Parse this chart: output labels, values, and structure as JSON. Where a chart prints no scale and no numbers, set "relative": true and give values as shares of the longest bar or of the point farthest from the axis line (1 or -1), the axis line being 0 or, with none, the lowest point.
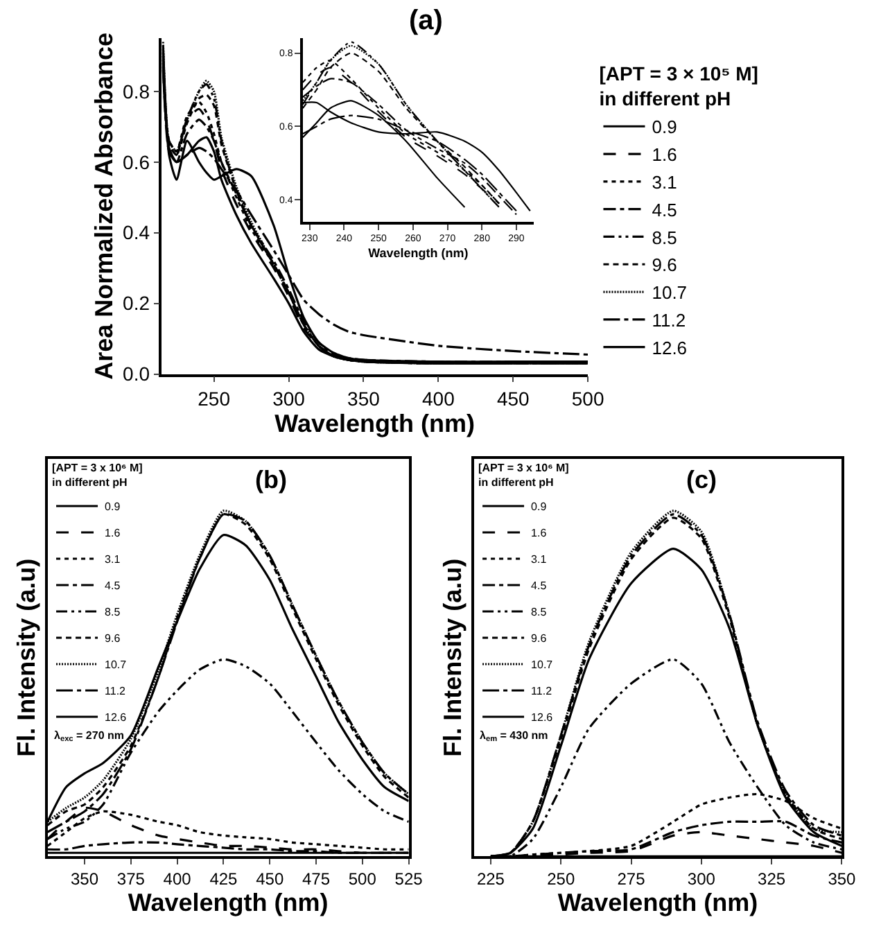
{
  "chart_data": [
    {
      "type": "line",
      "title": "(a)",
      "xlabel": "Wavelength (nm)",
      "ylabel": "Area Normalized Absorbance",
      "legend_title": "[APT = 3 × 10⁵ M]\nin different pH",
      "legend": "right",
      "xlim": [
        215,
        500
      ],
      "ylim": [
        0,
        0.95
      ],
      "xticks": [
        250,
        300,
        350,
        400,
        450,
        500
      ],
      "yticks": [
        {
          "value": 0,
          "label": "0.0"
        },
        0.2,
        0.4,
        0.6,
        0.8
      ],
      "grid": false,
      "marker": "none",
      "x": [
        216,
        220,
        225,
        232,
        240,
        245,
        250,
        255,
        265,
        275,
        290,
        300,
        310,
        320,
        330,
        340,
        350,
        400,
        450,
        500
      ],
      "series": [
        {
          "name": "0.9",
          "color": "#000000",
          "line_style": "solid",
          "values": [
            0.93,
            0.62,
            0.55,
            0.66,
            0.6,
            0.57,
            0.55,
            0.56,
            0.58,
            0.56,
            0.42,
            0.28,
            0.16,
            0.09,
            0.06,
            0.045,
            0.04,
            0.035,
            0.035,
            0.035
          ]
        },
        {
          "name": "1.6",
          "color": "#000000",
          "line_style": "dashed",
          "values": [
            0.9,
            0.65,
            0.62,
            0.72,
            0.75,
            0.72,
            0.66,
            0.58,
            0.48,
            0.4,
            0.3,
            0.22,
            0.13,
            0.08,
            0.05,
            0.04,
            0.035,
            0.03,
            0.03,
            0.03
          ]
        },
        {
          "name": "3.1",
          "color": "#000000",
          "line_style": "dotted",
          "values": [
            0.91,
            0.66,
            0.63,
            0.73,
            0.77,
            0.74,
            0.68,
            0.6,
            0.5,
            0.41,
            0.31,
            0.23,
            0.14,
            0.08,
            0.05,
            0.04,
            0.035,
            0.03,
            0.03,
            0.03
          ]
        },
        {
          "name": "4.5",
          "color": "#000000",
          "line_style": "dashdot",
          "values": [
            0.89,
            0.64,
            0.6,
            0.68,
            0.72,
            0.7,
            0.66,
            0.6,
            0.51,
            0.42,
            0.32,
            0.24,
            0.15,
            0.09,
            0.055,
            0.045,
            0.04,
            0.035,
            0.035,
            0.035
          ]
        },
        {
          "name": "8.5",
          "color": "#000000",
          "line_style": "dashdotdot",
          "values": [
            0.92,
            0.66,
            0.63,
            0.72,
            0.8,
            0.82,
            0.78,
            0.66,
            0.52,
            0.42,
            0.31,
            0.23,
            0.14,
            0.08,
            0.05,
            0.04,
            0.035,
            0.03,
            0.03,
            0.03
          ]
        },
        {
          "name": "9.6",
          "color": "#000000",
          "line_style": "shortdash",
          "values": [
            0.88,
            0.65,
            0.62,
            0.71,
            0.78,
            0.79,
            0.76,
            0.65,
            0.52,
            0.42,
            0.31,
            0.23,
            0.14,
            0.08,
            0.05,
            0.04,
            0.035,
            0.03,
            0.03,
            0.03
          ]
        },
        {
          "name": "10.7",
          "color": "#000000",
          "line_style": "densedot",
          "values": [
            0.94,
            0.66,
            0.63,
            0.72,
            0.8,
            0.83,
            0.8,
            0.67,
            0.53,
            0.43,
            0.31,
            0.23,
            0.14,
            0.08,
            0.05,
            0.04,
            0.035,
            0.03,
            0.03,
            0.03
          ]
        },
        {
          "name": "11.2",
          "color": "#000000",
          "line_style": "longdashdot",
          "values": [
            0.87,
            0.63,
            0.6,
            0.62,
            0.64,
            0.63,
            0.61,
            0.58,
            0.52,
            0.45,
            0.35,
            0.28,
            0.21,
            0.17,
            0.14,
            0.12,
            0.11,
            0.08,
            0.065,
            0.055
          ]
        },
        {
          "name": "12.6",
          "color": "#000000",
          "line_style": "solid",
          "values": [
            0.86,
            0.64,
            0.6,
            0.62,
            0.66,
            0.67,
            0.63,
            0.55,
            0.45,
            0.37,
            0.27,
            0.2,
            0.12,
            0.07,
            0.05,
            0.04,
            0.035,
            0.03,
            0.03,
            0.03
          ]
        }
      ]
    },
    {
      "type": "line",
      "xlabel": "Wavelength (nm)",
      "legend": false,
      "xlim": [
        228,
        295
      ],
      "ylim": [
        0.34,
        0.84
      ],
      "xticks": [
        230,
        240,
        250,
        260,
        270,
        280,
        290
      ],
      "yticks": [
        0.4,
        0.6,
        0.8
      ],
      "grid": false,
      "marker": "none",
      "x": [
        228,
        232,
        236,
        242,
        250,
        258,
        267,
        275,
        280,
        285,
        290,
        294
      ],
      "series": [
        {
          "color": "#000000",
          "line_style": "solid",
          "values": [
            0.665,
            0.665,
            0.64,
            0.61,
            0.585,
            0.58,
            0.585,
            0.56,
            0.53,
            0.48,
            0.42,
            0.37
          ]
        },
        {
          "color": "#000000",
          "line_style": "dashed",
          "values": [
            0.7,
            0.74,
            0.76,
            0.72,
            0.64,
            0.57,
            0.52,
            0.47,
            0.43,
            0.39,
            null,
            null
          ]
        },
        {
          "color": "#000000",
          "line_style": "dotted",
          "values": [
            0.72,
            0.76,
            0.78,
            0.73,
            0.65,
            0.58,
            0.53,
            0.48,
            0.44,
            0.39,
            null,
            null
          ]
        },
        {
          "color": "#000000",
          "line_style": "dashdot",
          "values": [
            0.68,
            0.71,
            0.73,
            0.72,
            0.66,
            0.59,
            0.54,
            0.5,
            0.46,
            0.41,
            0.36,
            null
          ]
        },
        {
          "color": "#000000",
          "line_style": "dashdotdot",
          "values": [
            0.66,
            0.72,
            0.78,
            0.83,
            0.77,
            0.66,
            0.56,
            0.48,
            0.43,
            0.38,
            null,
            null
          ]
        },
        {
          "color": "#000000",
          "line_style": "shortdash",
          "values": [
            0.65,
            0.7,
            0.76,
            0.8,
            0.75,
            0.65,
            0.56,
            0.49,
            0.44,
            0.39,
            null,
            null
          ]
        },
        {
          "color": "#000000",
          "line_style": "densedot",
          "values": [
            0.67,
            0.72,
            0.78,
            0.82,
            0.77,
            0.66,
            0.56,
            0.48,
            0.43,
            0.38,
            null,
            null
          ]
        },
        {
          "color": "#000000",
          "line_style": "longdashdot",
          "values": [
            0.58,
            0.6,
            0.62,
            0.63,
            0.62,
            0.59,
            0.56,
            0.51,
            0.47,
            0.42,
            0.37,
            null
          ]
        },
        {
          "color": "#000000",
          "line_style": "solid",
          "values": [
            0.57,
            0.61,
            0.65,
            0.67,
            0.63,
            0.56,
            0.46,
            0.38,
            null,
            null,
            null,
            null
          ]
        }
      ]
    },
    {
      "type": "line",
      "title": "(b)",
      "xlabel": "Wavelength (nm)",
      "ylabel": "Fl. Intensity (a.u)",
      "legend_title": "[APT = 3 x 10⁶ M]\nin different pH",
      "legend": "top left",
      "relative": true,
      "tick_labels": "x",
      "xlim": [
        330,
        525
      ],
      "xticks": [
        350,
        375,
        400,
        425,
        450,
        475,
        500,
        525
      ],
      "grid": false,
      "marker": "none",
      "annotations": [
        "λ$_{exc}$ = 270 nm"
      ],
      "x": [
        330,
        340,
        350,
        360,
        375,
        390,
        400,
        412,
        425,
        437,
        450,
        462,
        475,
        487,
        500,
        512,
        525
      ],
      "series": [
        {
          "name": "0.9",
          "color": "#000000",
          "line_style": "solid",
          "values": [
            0.01,
            0.01,
            0.01,
            0.01,
            0.01,
            0.01,
            0.01,
            0.01,
            0.01,
            0.01,
            0.01,
            0.01,
            0.01,
            0.01,
            0.01,
            0.01,
            0.01
          ]
        },
        {
          "name": "1.6",
          "color": "#000000",
          "line_style": "dashed",
          "values": [
            0.05,
            0.1,
            0.14,
            0.13,
            0.09,
            0.06,
            0.05,
            0.04,
            0.03,
            0.03,
            0.025,
            0.02,
            0.02,
            0.015,
            0.01,
            0.01,
            0.01
          ]
        },
        {
          "name": "3.1",
          "color": "#000000",
          "line_style": "dotted",
          "values": [
            0.03,
            0.07,
            0.11,
            0.13,
            0.12,
            0.1,
            0.09,
            0.07,
            0.06,
            0.055,
            0.05,
            0.04,
            0.035,
            0.03,
            0.025,
            0.02,
            0.02
          ]
        },
        {
          "name": "4.5",
          "color": "#000000",
          "line_style": "dashdot",
          "values": [
            0.02,
            0.02,
            0.03,
            0.035,
            0.04,
            0.04,
            0.035,
            0.03,
            0.025,
            0.02,
            0.02,
            0.015,
            0.015,
            0.01,
            0.01,
            0.01,
            0.01
          ]
        },
        {
          "name": "8.5",
          "color": "#000000",
          "line_style": "dashdotdot",
          "values": [
            0.05,
            0.08,
            0.1,
            0.15,
            0.3,
            0.42,
            0.48,
            0.54,
            0.57,
            0.55,
            0.5,
            0.42,
            0.33,
            0.25,
            0.18,
            0.13,
            0.1
          ]
        },
        {
          "name": "9.6",
          "color": "#000000",
          "line_style": "shortdash",
          "values": [
            0.09,
            0.13,
            0.15,
            0.2,
            0.32,
            0.52,
            0.69,
            0.86,
            0.99,
            0.96,
            0.86,
            0.72,
            0.57,
            0.44,
            0.32,
            0.23,
            0.17
          ]
        },
        {
          "name": "10.7",
          "color": "#000000",
          "line_style": "densedot",
          "values": [
            0.1,
            0.14,
            0.17,
            0.22,
            0.34,
            0.54,
            0.7,
            0.87,
            1.0,
            0.97,
            0.87,
            0.73,
            0.58,
            0.45,
            0.33,
            0.24,
            0.18
          ]
        },
        {
          "name": "11.2",
          "color": "#000000",
          "line_style": "longdashdot",
          "values": [
            0.07,
            0.1,
            0.13,
            0.18,
            0.31,
            0.52,
            0.68,
            0.86,
            0.99,
            0.97,
            0.87,
            0.73,
            0.58,
            0.45,
            0.33,
            0.24,
            0.18
          ]
        },
        {
          "name": "12.6",
          "color": "#000000",
          "line_style": "solid",
          "values": [
            0.1,
            0.2,
            0.24,
            0.27,
            0.35,
            0.55,
            0.68,
            0.83,
            0.93,
            0.9,
            0.8,
            0.66,
            0.52,
            0.39,
            0.28,
            0.2,
            0.16
          ]
        }
      ]
    },
    {
      "type": "line",
      "title": "(c)",
      "xlabel": "Wavelength (nm)",
      "ylabel": "Fl. Intensity (a.u)",
      "legend_title": "[APT = 3 x 10⁶ M]\nin different pH",
      "legend": "top left",
      "relative": true,
      "tick_labels": "x",
      "xlim": [
        219,
        350
      ],
      "xticks": [
        225,
        250,
        275,
        300,
        325,
        350
      ],
      "grid": false,
      "marker": "none",
      "annotations": [
        "λ$_{em}$ = 430 nm"
      ],
      "x": [
        225,
        232,
        240,
        250,
        260,
        275,
        290,
        300,
        310,
        320,
        330,
        340,
        350
      ],
      "series": [
        {
          "name": "0.9",
          "color": "#000000",
          "line_style": "solid",
          "values": [
            0,
            0,
            0,
            0,
            0,
            0,
            0,
            0,
            0,
            0,
            0,
            0,
            0
          ]
        },
        {
          "name": "1.6",
          "color": "#000000",
          "line_style": "dashed",
          "values": [
            0,
            0,
            0.003,
            0.005,
            0.01,
            0.015,
            0.06,
            0.07,
            0.06,
            0.05,
            0.04,
            0.03,
            0.01
          ]
        },
        {
          "name": "3.1",
          "color": "#000000",
          "line_style": "dotted",
          "values": [
            0,
            0,
            0.005,
            0.01,
            0.015,
            0.03,
            0.1,
            0.15,
            0.17,
            0.18,
            0.16,
            0.11,
            0.08
          ]
        },
        {
          "name": "4.5",
          "color": "#000000",
          "line_style": "dashdot",
          "values": [
            0,
            0,
            0.005,
            0.01,
            0.015,
            0.02,
            0.07,
            0.09,
            0.1,
            0.1,
            0.1,
            0.06,
            0.04
          ]
        },
        {
          "name": "8.5",
          "color": "#000000",
          "line_style": "dashdotdot",
          "values": [
            0,
            0,
            0.05,
            0.2,
            0.37,
            0.5,
            0.57,
            0.5,
            0.33,
            0.2,
            0.09,
            0.04,
            0.02
          ]
        },
        {
          "name": "9.6",
          "color": "#000000",
          "line_style": "shortdash",
          "values": [
            0,
            0.01,
            0.1,
            0.34,
            0.6,
            0.86,
            0.98,
            0.92,
            0.69,
            0.38,
            0.18,
            0.08,
            0.05
          ]
        },
        {
          "name": "10.7",
          "color": "#000000",
          "line_style": "densedot",
          "values": [
            0,
            0.01,
            0.1,
            0.35,
            0.62,
            0.88,
            1.0,
            0.94,
            0.7,
            0.38,
            0.18,
            0.08,
            0.07
          ]
        },
        {
          "name": "11.2",
          "color": "#000000",
          "line_style": "longdashdot",
          "values": [
            0,
            0.01,
            0.1,
            0.35,
            0.61,
            0.87,
            0.99,
            0.93,
            0.7,
            0.39,
            0.19,
            0.09,
            0.06
          ]
        },
        {
          "name": "12.6",
          "color": "#000000",
          "line_style": "solid",
          "values": [
            0,
            0.01,
            0.08,
            0.32,
            0.57,
            0.79,
            0.89,
            0.83,
            0.66,
            0.38,
            0.17,
            0.07,
            0.03
          ]
        }
      ]
    }
  ]
}
